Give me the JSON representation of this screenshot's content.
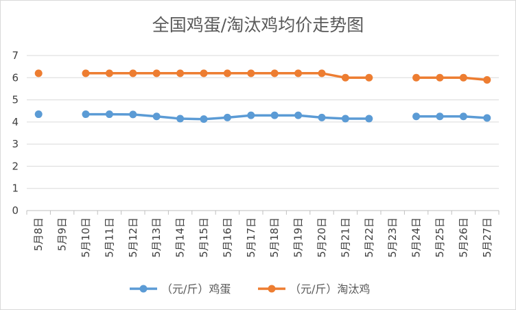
{
  "chart_data": {
    "type": "line",
    "title": "全国鸡蛋/淘汰鸡均价走势图",
    "xlabel": "",
    "ylabel": "",
    "ylim": [
      0,
      7
    ],
    "yticks": [
      "0",
      "1",
      "2",
      "3",
      "4",
      "5",
      "6",
      "7"
    ],
    "grid": true,
    "legend_position": "bottom",
    "categories": [
      "5月8日",
      "5月9日",
      "5月10日",
      "5月11日",
      "5月12日",
      "5月13日",
      "5月14日",
      "5月15日",
      "5月16日",
      "5月17日",
      "5月18日",
      "5月19日",
      "5月20日",
      "5月21日",
      "5月22日",
      "5月23日",
      "5月24日",
      "5月25日",
      "5月26日",
      "5月27日"
    ],
    "series": [
      {
        "name": "（元/斤）鸡蛋",
        "color": "#5b9bd5",
        "values": [
          4.35,
          null,
          4.35,
          4.35,
          4.34,
          4.25,
          4.15,
          4.13,
          4.2,
          4.3,
          4.3,
          4.3,
          4.2,
          4.15,
          4.15,
          null,
          4.25,
          4.25,
          4.25,
          4.18
        ]
      },
      {
        "name": "（元/斤）淘汰鸡",
        "color": "#ed7d31",
        "values": [
          6.2,
          null,
          6.2,
          6.2,
          6.2,
          6.2,
          6.2,
          6.2,
          6.2,
          6.2,
          6.2,
          6.2,
          6.2,
          6.0,
          6.0,
          null,
          6.0,
          6.0,
          6.0,
          5.9
        ]
      }
    ]
  }
}
